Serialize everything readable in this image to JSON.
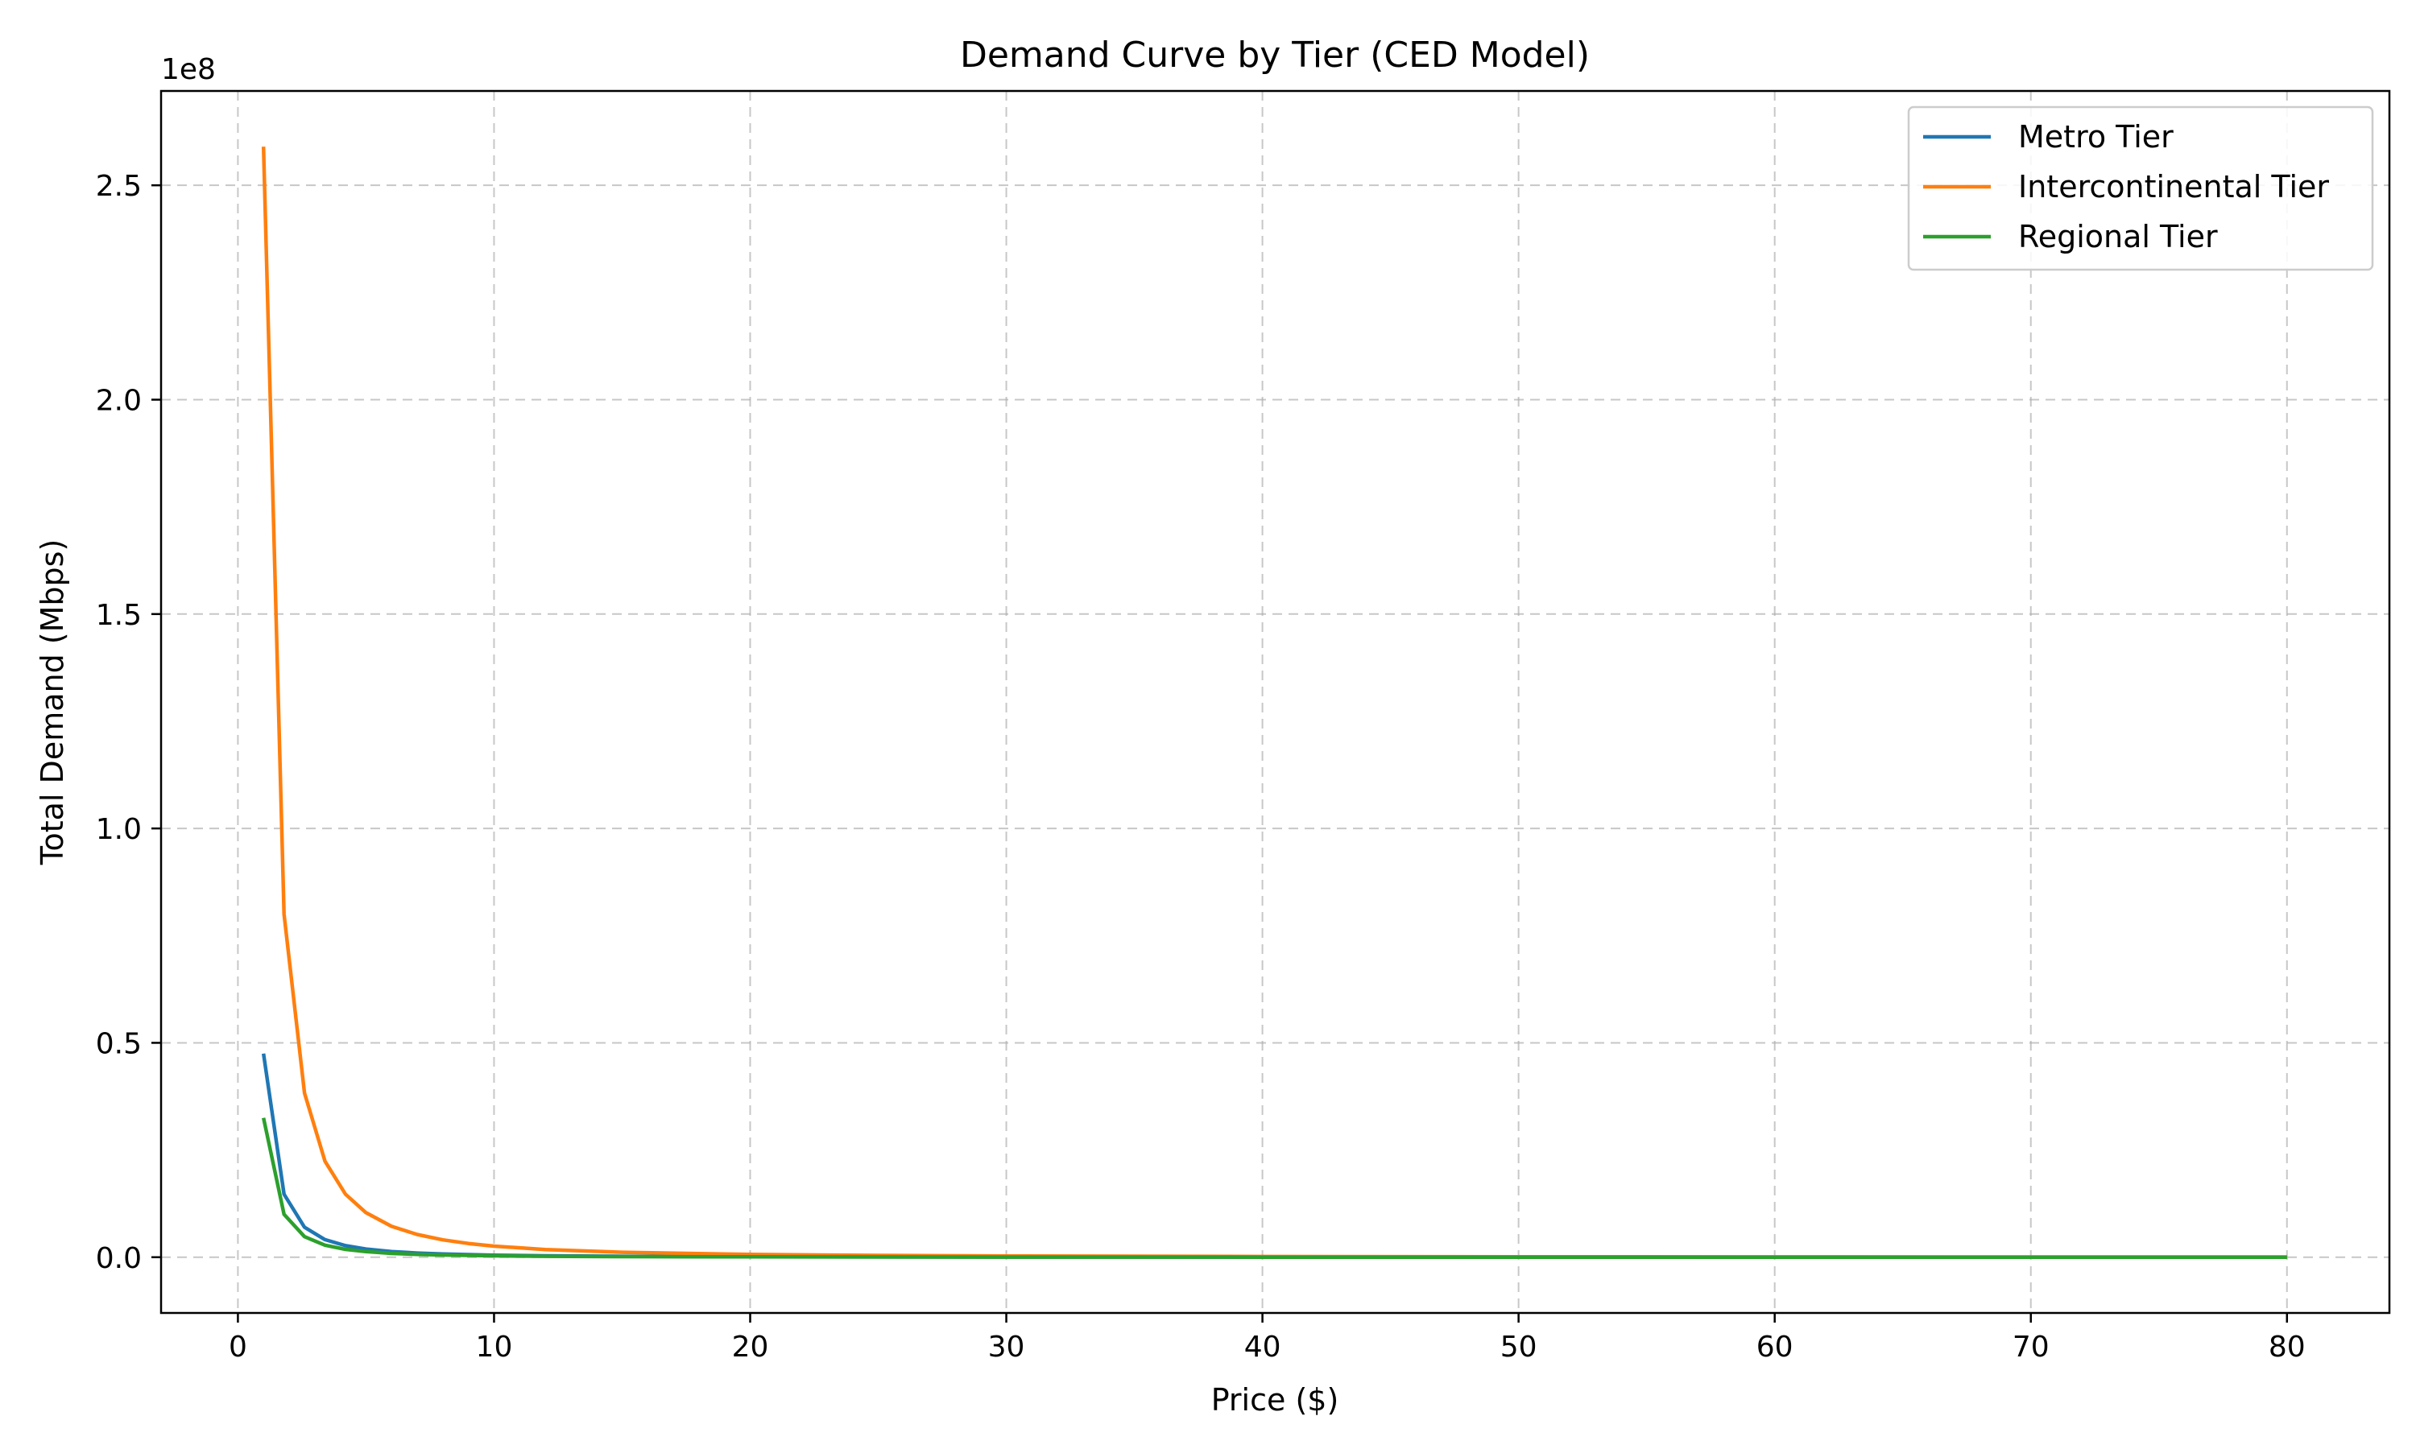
{
  "chart_data": {
    "type": "line",
    "title": "Demand Curve by Tier (CED Model)",
    "xlabel": "Price ($)",
    "ylabel": "Total Demand (Mbps)",
    "y_offset_label": "1e8",
    "y_scale_factor": 100000000,
    "xlim": [
      -3,
      84
    ],
    "ylim": [
      -13000000,
      272000000
    ],
    "xticks": [
      0,
      10,
      20,
      30,
      40,
      50,
      60,
      70,
      80
    ],
    "xtick_labels": [
      "0",
      "10",
      "20",
      "30",
      "40",
      "50",
      "60",
      "70",
      "80"
    ],
    "yticks": [
      0,
      50000000,
      100000000,
      150000000,
      200000000,
      250000000
    ],
    "ytick_labels": [
      "0.0",
      "0.5",
      "1.0",
      "1.5",
      "2.0",
      "2.5"
    ],
    "grid": true,
    "legend_position": "upper right",
    "series": [
      {
        "name": "Metro Tier",
        "color": "#1f77b4",
        "x": [
          1.0,
          1.8,
          2.6,
          3.4,
          4.2,
          5.0,
          6.0,
          7.0,
          8.0,
          10.0,
          12.0,
          15.0,
          20.0,
          30.0,
          40.0,
          50.0,
          60.0,
          70.0,
          80.0
        ],
        "y": [
          47500000,
          14700000,
          7000000,
          4100000,
          2700000,
          1900000,
          1320000,
          970000,
          740000,
          475000,
          330000,
          211000,
          119000,
          53000,
          30000,
          19000,
          13200,
          9700,
          7400
        ]
      },
      {
        "name": "Intercontinental Tier",
        "color": "#ff7f0e",
        "x": [
          1.0,
          1.8,
          2.6,
          3.4,
          4.2,
          5.0,
          6.0,
          7.0,
          8.0,
          9.0,
          10.0,
          12.0,
          15.0,
          20.0,
          25.0,
          30.0,
          40.0,
          50.0,
          60.0,
          70.0,
          80.0
        ],
        "y": [
          259000000,
          80000000,
          38300000,
          22400000,
          14700000,
          10400000,
          7200000,
          5300000,
          4050000,
          3200000,
          2590000,
          1800000,
          1150000,
          650000,
          415000,
          288000,
          162000,
          104000,
          72000,
          53000,
          40500
        ]
      },
      {
        "name": "Regional Tier",
        "color": "#2ca02c",
        "x": [
          1.0,
          1.8,
          2.6,
          3.4,
          4.2,
          5.0,
          6.0,
          7.0,
          8.0,
          10.0,
          12.0,
          15.0,
          20.0,
          30.0,
          40.0,
          50.0,
          60.0,
          70.0,
          80.0
        ],
        "y": [
          32500000,
          10000000,
          4800000,
          2810000,
          1840000,
          1300000,
          900000,
          660000,
          510000,
          325000,
          226000,
          144000,
          81000,
          36000,
          20000,
          13000,
          9000,
          6600,
          5100
        ]
      }
    ]
  }
}
